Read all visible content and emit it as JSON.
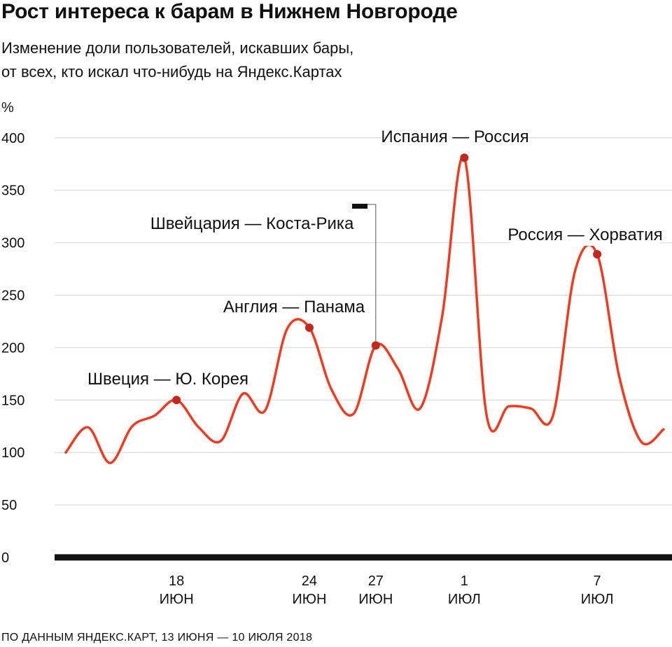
{
  "title": "Рост интереса к барам в Нижнем Новгороде",
  "subtitle_line1": "Изменение доли пользователей, искавших бары,",
  "subtitle_line2": "от всех, кто искал что-нибудь на Яндекс.Картах",
  "source": "ПО ДАННЫМ ЯНДЕКС.КАРТ, 13 ИЮНЯ — 10 ИЮЛЯ 2018",
  "colors": {
    "line": "#f23a1f",
    "marker": "#c4281c",
    "axis": "#111111",
    "grid": "#d6d6d6"
  },
  "chart_data": {
    "type": "line",
    "unit_label": "%",
    "ylim": [
      0,
      400
    ],
    "yticks": [
      "0",
      "50",
      "100",
      "150",
      "200",
      "250",
      "300",
      "350",
      "400"
    ],
    "xlim": [
      "2018-06-13",
      "2018-07-10"
    ],
    "xticks": [
      {
        "date": "2018-06-18",
        "day": "18",
        "month": "ИЮН"
      },
      {
        "date": "2018-06-24",
        "day": "24",
        "month": "ИЮН"
      },
      {
        "date": "2018-06-27",
        "day": "27",
        "month": "ИЮН"
      },
      {
        "date": "2018-07-01",
        "day": "1",
        "month": "ИЮЛ"
      },
      {
        "date": "2018-07-07",
        "day": "7",
        "month": "ИЮЛ"
      }
    ],
    "grid": true,
    "series": [
      {
        "points": [
          [
            "2018-06-13",
            100
          ],
          [
            "2018-06-14",
            124
          ],
          [
            "2018-06-15",
            90
          ],
          [
            "2018-06-16",
            125
          ],
          [
            "2018-06-17",
            135
          ],
          [
            "2018-06-18",
            150
          ],
          [
            "2018-06-19",
            124
          ],
          [
            "2018-06-20",
            111
          ],
          [
            "2018-06-21",
            156
          ],
          [
            "2018-06-22",
            140
          ],
          [
            "2018-06-23",
            218
          ],
          [
            "2018-06-24",
            219
          ],
          [
            "2018-06-25",
            160
          ],
          [
            "2018-06-26",
            137
          ],
          [
            "2018-06-27",
            202
          ],
          [
            "2018-06-28",
            180
          ],
          [
            "2018-06-29",
            142
          ],
          [
            "2018-06-30",
            230
          ],
          [
            "2018-07-01",
            381
          ],
          [
            "2018-07-02",
            136
          ],
          [
            "2018-07-03",
            144
          ],
          [
            "2018-07-04",
            142
          ],
          [
            "2018-07-05",
            135
          ],
          [
            "2018-07-06",
            273
          ],
          [
            "2018-07-07",
            289
          ],
          [
            "2018-07-08",
            172
          ],
          [
            "2018-07-09",
            110
          ],
          [
            "2018-07-10",
            122
          ]
        ]
      }
    ],
    "annotations": [
      {
        "date": "2018-06-18",
        "value": 150,
        "label": "Швеция — Ю. Корея"
      },
      {
        "date": "2018-06-24",
        "value": 219,
        "label": "Англия — Панама"
      },
      {
        "date": "2018-06-27",
        "value": 202,
        "label": "Швейцария — Коста-Рика"
      },
      {
        "date": "2018-07-01",
        "value": 381,
        "label": "Испания — Россия"
      },
      {
        "date": "2018-07-07",
        "value": 289,
        "label": "Россия — Хорватия"
      }
    ]
  }
}
